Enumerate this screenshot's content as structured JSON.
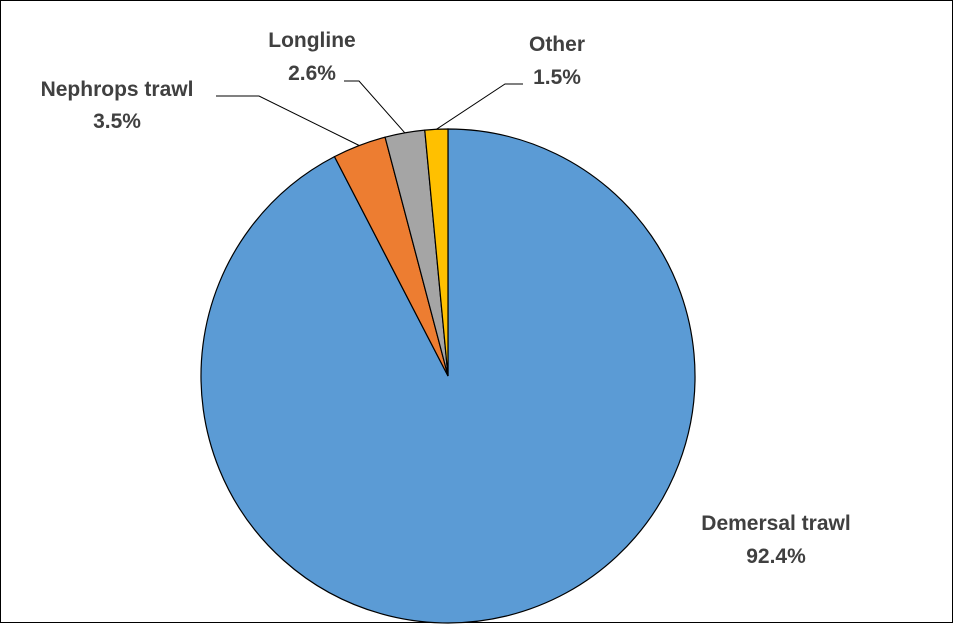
{
  "chart_data": {
    "type": "pie",
    "title": "",
    "slices": [
      {
        "label": "Demersal trawl",
        "value": 92.4,
        "value_label": "92.4%",
        "color": "#5b9bd5"
      },
      {
        "label": "Nephrops trawl",
        "value": 3.5,
        "value_label": "3.5%",
        "color": "#ed7d31"
      },
      {
        "label": "Longline",
        "value": 2.6,
        "value_label": "2.6%",
        "color": "#a5a5a5"
      },
      {
        "label": "Other",
        "value": 1.5,
        "value_label": "1.5%",
        "color": "#ffc000"
      }
    ],
    "start_angle": "12 o'clock",
    "direction": "clockwise",
    "legend": "none (data labels with leader lines)"
  }
}
